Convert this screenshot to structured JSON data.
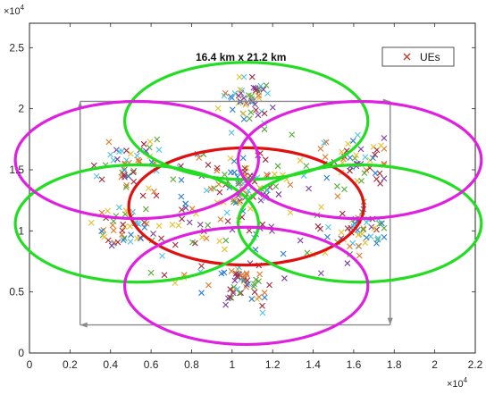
{
  "chart_data": {
    "type": "scatter",
    "title": "",
    "xlabel": "",
    "ylabel": "",
    "xlim": [
      0,
      22000
    ],
    "ylim": [
      0,
      27000
    ],
    "x_ticks": [
      0,
      2000,
      4000,
      6000,
      8000,
      10000,
      12000,
      14000,
      16000,
      18000,
      20000,
      22000
    ],
    "x_tick_labels": [
      "0",
      "0.2",
      "0.4",
      "0.6",
      "0.8",
      "1",
      "1.2",
      "1.4",
      "1.6",
      "1.8",
      "2",
      "2.2"
    ],
    "y_ticks": [
      0,
      5000,
      10000,
      15000,
      20000,
      25000
    ],
    "y_tick_labels": [
      "0",
      "0.5",
      "1",
      "1.5",
      "2",
      "2.5"
    ],
    "x_multiplier_label": "× 10^4",
    "y_multiplier_label": "× 10^4",
    "grid": false,
    "legend": {
      "position": "top-right",
      "entries": [
        {
          "label": "UEs",
          "marker": "x",
          "color": "#c0392b"
        }
      ]
    },
    "annotation": {
      "text": "16.4 km x 21.2 km"
    },
    "region_rectangle": {
      "x": [
        2500,
        17800
      ],
      "y": [
        2300,
        20600
      ]
    },
    "ellipses": [
      {
        "color": "#e01010",
        "cx": 10700,
        "cy": 12000,
        "rx": 5800,
        "ry": 4800
      },
      {
        "color": "#22dd22",
        "cx": 10700,
        "cy": 19000,
        "rx": 6000,
        "ry": 4800
      },
      {
        "color": "#22dd22",
        "cx": 5300,
        "cy": 10600,
        "rx": 6000,
        "ry": 4800
      },
      {
        "color": "#22dd22",
        "cx": 16300,
        "cy": 10600,
        "rx": 6000,
        "ry": 4800
      },
      {
        "color": "#e020e0",
        "cx": 5300,
        "cy": 15800,
        "rx": 6000,
        "ry": 4800
      },
      {
        "color": "#e020e0",
        "cx": 16300,
        "cy": 15800,
        "rx": 6000,
        "ry": 4800
      },
      {
        "color": "#e020e0",
        "cx": 10700,
        "cy": 5500,
        "rx": 6000,
        "ry": 4800
      }
    ],
    "ue_clusters": [
      {
        "cx": 10700,
        "cy": 21000,
        "sx": 900,
        "sy": 1300,
        "n": 50
      },
      {
        "cx": 10700,
        "cy": 13500,
        "sx": 1000,
        "sy": 1400,
        "n": 45
      },
      {
        "cx": 10700,
        "cy": 5500,
        "sx": 1100,
        "sy": 1400,
        "n": 50
      },
      {
        "cx": 5000,
        "cy": 15500,
        "sx": 1300,
        "sy": 1300,
        "n": 45
      },
      {
        "cx": 5000,
        "cy": 10000,
        "sx": 1300,
        "sy": 1300,
        "n": 45
      },
      {
        "cx": 16200,
        "cy": 15500,
        "sx": 1300,
        "sy": 1400,
        "n": 45
      },
      {
        "cx": 16200,
        "cy": 10000,
        "sx": 1300,
        "sy": 1400,
        "n": 45
      },
      {
        "cx": 10700,
        "cy": 12000,
        "sx": 4000,
        "sy": 4500,
        "n": 120
      }
    ],
    "ue_x_range": [
      2800,
      17500
    ],
    "ue_y_range": [
      2500,
      22600
    ],
    "ue_colors": [
      "#2a7fd4",
      "#e0782a",
      "#e6c02e",
      "#7b3fa0",
      "#56a83a",
      "#4ec3e6",
      "#a3283c"
    ]
  }
}
